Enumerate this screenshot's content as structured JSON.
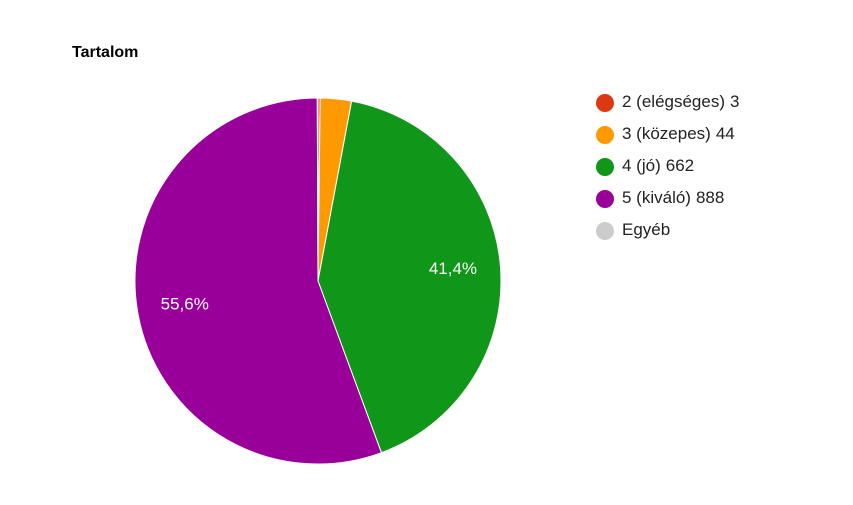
{
  "chart_data": {
    "type": "pie",
    "title": "Tartalom",
    "categories": [
      "2 (elégséges)",
      "3 (közepes)",
      "4 (jó)",
      "5 (kiváló)",
      "Egyéb"
    ],
    "values": [
      3,
      44,
      662,
      888,
      1
    ],
    "value_labels": [
      null,
      null,
      "41,4%",
      "55,6%",
      null
    ],
    "colors": [
      "#dc3912",
      "#ff9900",
      "#109618",
      "#990099",
      "#cccccc"
    ],
    "legend_values": [
      true,
      true,
      true,
      true,
      false
    ],
    "legend": "right"
  }
}
